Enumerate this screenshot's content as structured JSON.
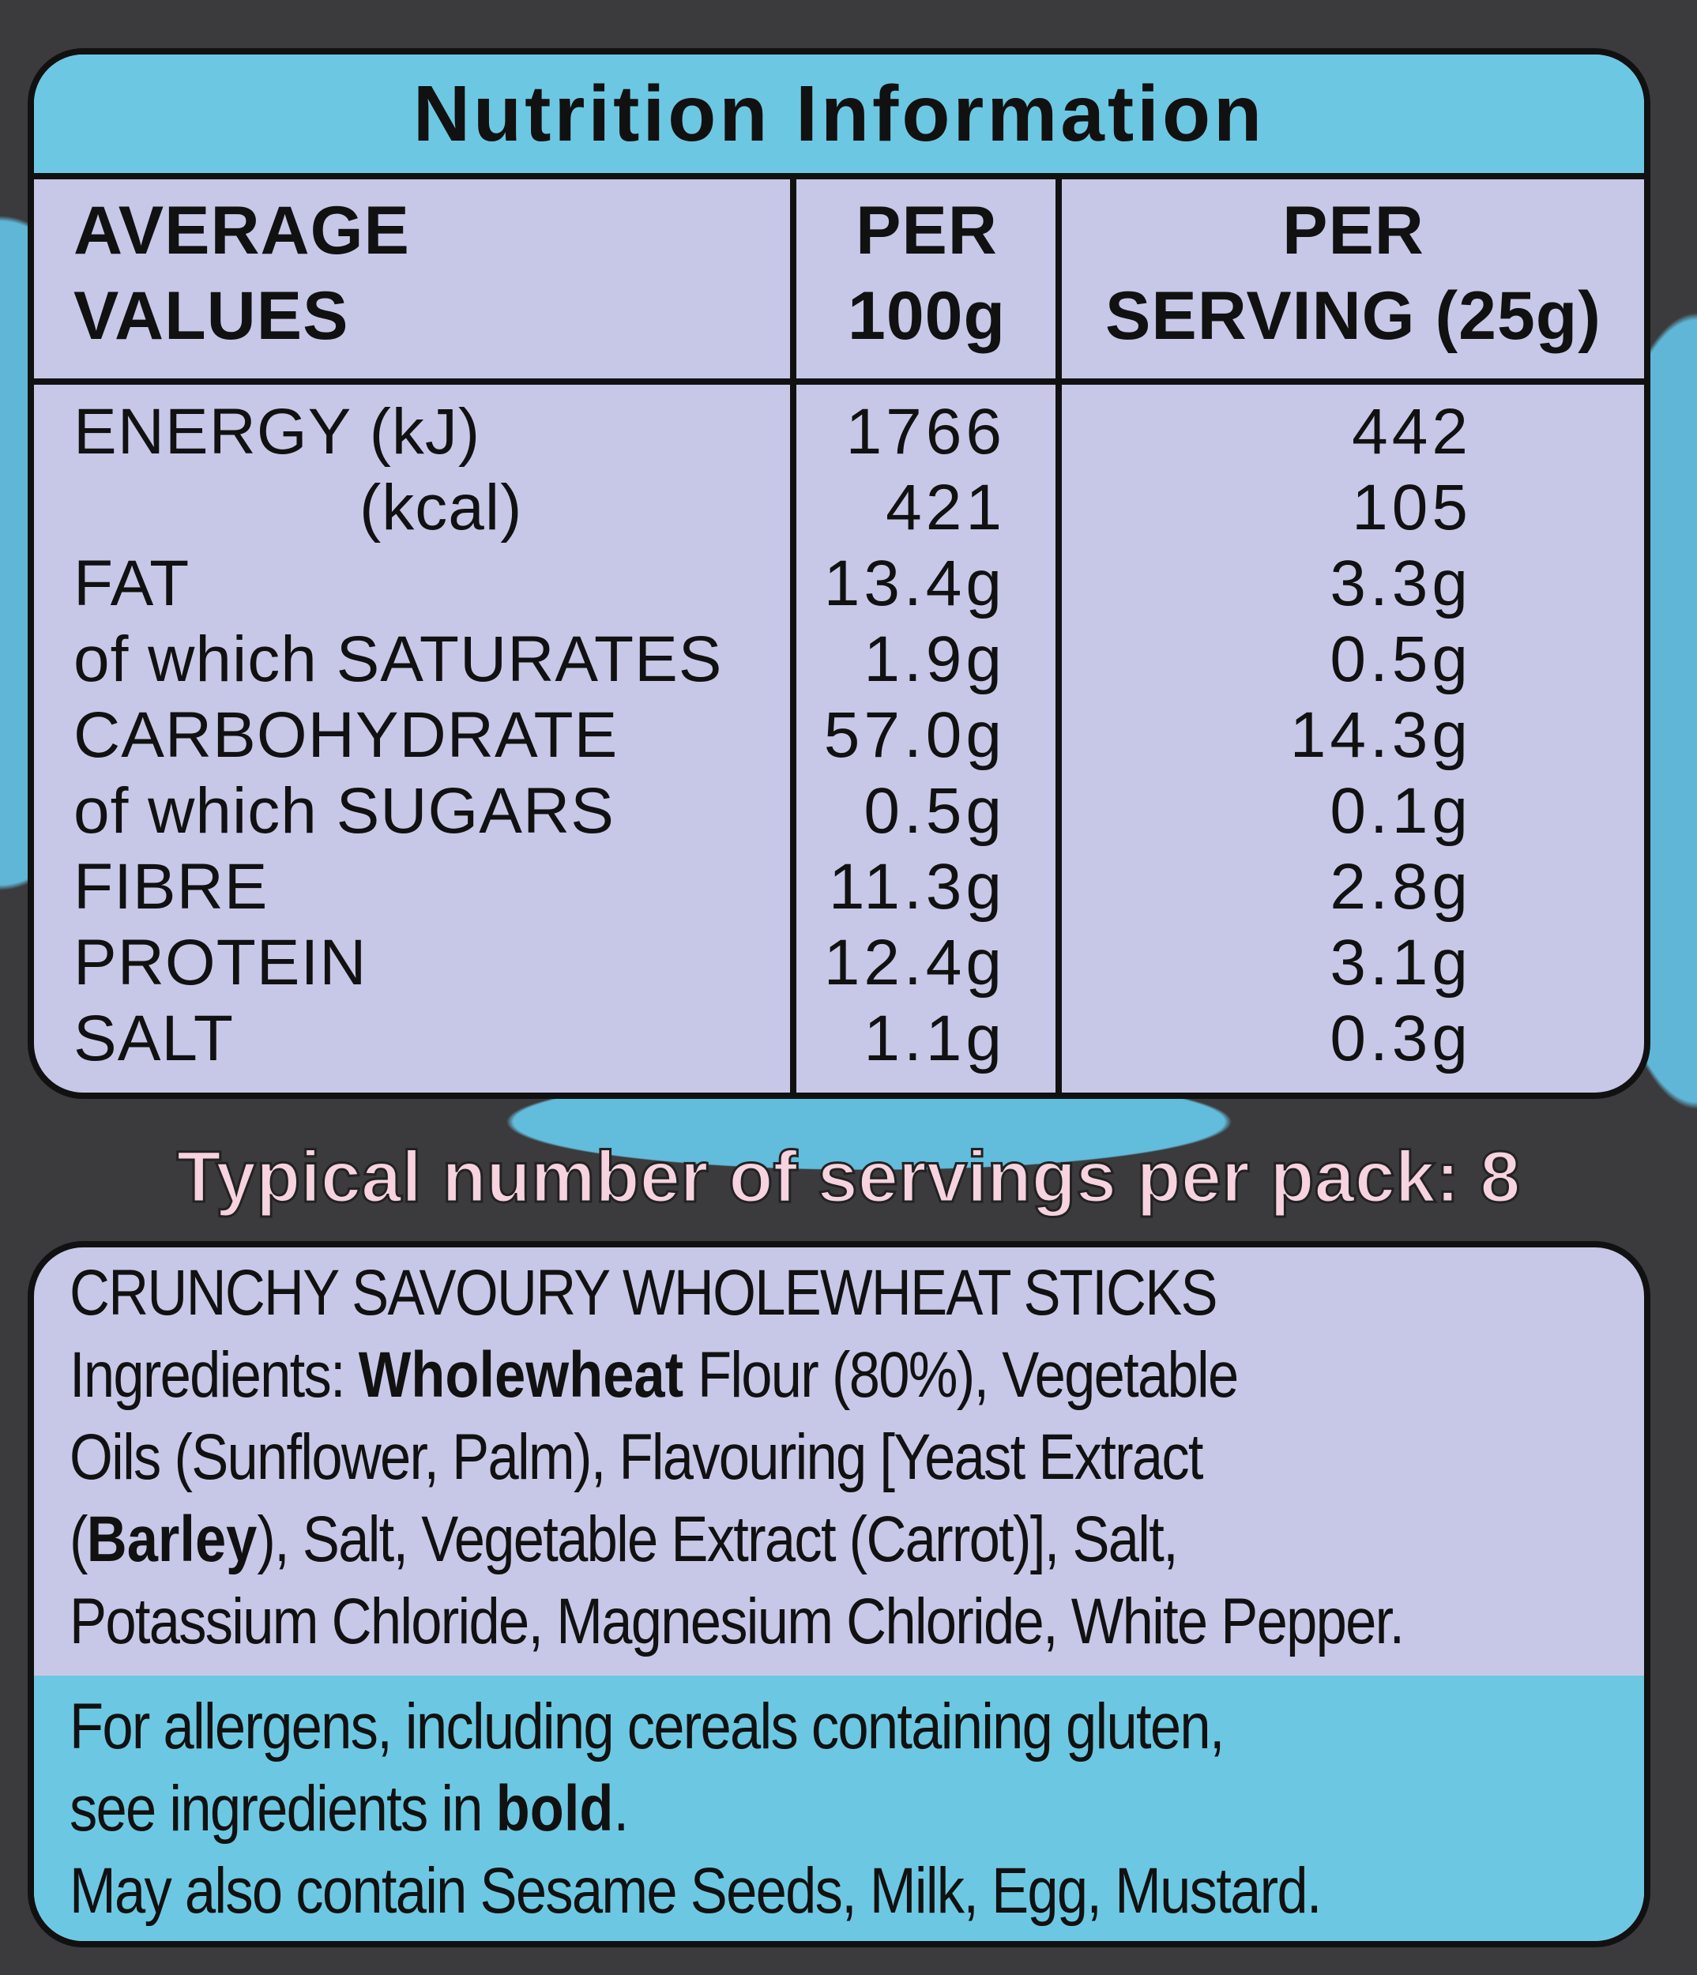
{
  "title": "Nutrition Information",
  "table": {
    "header": [
      [
        "AVERAGE",
        "VALUES"
      ],
      [
        "PER",
        "100g"
      ],
      [
        "PER",
        "SERVING (25g)"
      ]
    ],
    "rows": [
      [
        "ENERGY (kJ)",
        "1766",
        "442"
      ],
      [
        "(kcal)",
        "421",
        "105"
      ],
      [
        "FAT",
        "13.4g",
        "3.3g"
      ],
      [
        "of which SATURATES",
        "1.9g",
        "0.5g"
      ],
      [
        "CARBOHYDRATE",
        "57.0g",
        "14.3g"
      ],
      [
        "of which SUGARS",
        "0.5g",
        "0.1g"
      ],
      [
        "FIBRE",
        "11.3g",
        "2.8g"
      ],
      [
        "PROTEIN",
        "12.4g",
        "3.1g"
      ],
      [
        "SALT",
        "1.1g",
        "0.3g"
      ]
    ]
  },
  "servings": "Typical number of servings per pack: 8",
  "ingredients": {
    "lines": [
      [
        {
          "text": "CRUNCHY SAVOURY WHOLEWHEAT STICKS",
          "bold": false
        }
      ],
      [
        {
          "text": "Ingredients: ",
          "bold": false
        },
        {
          "text": "Wholewheat",
          "bold": true
        },
        {
          "text": " Flour (80%), Vegetable",
          "bold": false
        }
      ],
      [
        {
          "text": "Oils (Sunflower, Palm), Flavouring [Yeast Extract",
          "bold": false
        }
      ],
      [
        {
          "text": "(",
          "bold": false
        },
        {
          "text": "Barley",
          "bold": true
        },
        {
          "text": "), Salt, Vegetable Extract (Carrot)], Salt,",
          "bold": false
        }
      ],
      [
        {
          "text": "Potassium Chloride, Magnesium Chloride, White Pepper.",
          "bold": false
        }
      ]
    ]
  },
  "allergens": {
    "lines": [
      [
        {
          "text": "For allergens, including cereals containing gluten,",
          "bold": false
        }
      ],
      [
        {
          "text": "see ingredients in ",
          "bold": false
        },
        {
          "text": "bold",
          "bold": true
        },
        {
          "text": ".",
          "bold": false
        }
      ],
      [
        {
          "text": "May also contain Sesame Seeds, Milk, Egg, Mustard.",
          "bold": false
        }
      ]
    ]
  }
}
